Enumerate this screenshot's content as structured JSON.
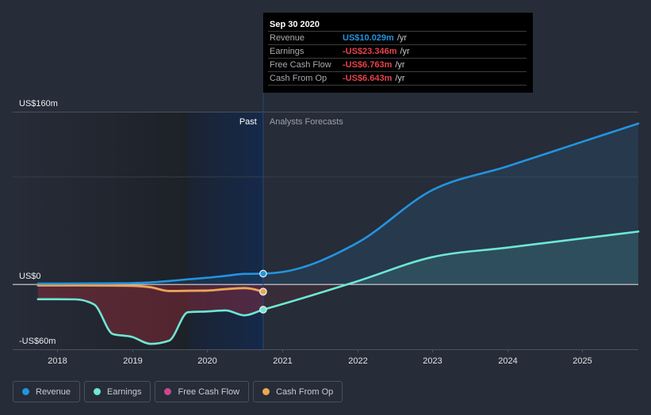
{
  "chart_data": {
    "type": "line",
    "title": "",
    "xlabel": "",
    "ylabel": "",
    "xlim": [
      "2017-05-30",
      "2025-09-30"
    ],
    "ylim": [
      -60,
      160
    ],
    "grid": true,
    "gridlines": [
      160,
      100
    ],
    "legend_position": "bottom-left",
    "y_axis_labels": [
      {
        "value": 160,
        "label": "US$160m"
      },
      {
        "value": 0,
        "label": "US$0"
      },
      {
        "value": -60,
        "label": "-US$60m"
      }
    ],
    "x_ticks": [
      {
        "date": "2018-01-01",
        "label": "2018"
      },
      {
        "date": "2019-01-01",
        "label": "2019"
      },
      {
        "date": "2020-01-01",
        "label": "2020"
      },
      {
        "date": "2021-01-01",
        "label": "2021"
      },
      {
        "date": "2022-01-01",
        "label": "2022"
      },
      {
        "date": "2023-01-01",
        "label": "2023"
      },
      {
        "date": "2024-01-01",
        "label": "2024"
      },
      {
        "date": "2025-01-01",
        "label": "2025"
      }
    ],
    "regions": {
      "past": {
        "label": "Past",
        "start": "2019-09-30",
        "end": "2020-09-30"
      },
      "forecast": {
        "label": "Analysts Forecasts",
        "start": "2020-09-30"
      }
    },
    "highlight_date": "2020-09-30",
    "series": [
      {
        "name": "Revenue",
        "color": "#2394df",
        "unit": "US$m",
        "points": [
          [
            "2017-09-30",
            0.8
          ],
          [
            "2017-12-31",
            0.8
          ],
          [
            "2018-03-31",
            0.9
          ],
          [
            "2018-06-30",
            1.0
          ],
          [
            "2018-09-30",
            1.1
          ],
          [
            "2018-12-31",
            1.3
          ],
          [
            "2019-03-31",
            1.9
          ],
          [
            "2019-06-30",
            3.2
          ],
          [
            "2019-09-30",
            4.8
          ],
          [
            "2019-12-31",
            6.2
          ],
          [
            "2020-03-31",
            8.0
          ],
          [
            "2020-06-30",
            9.8
          ],
          [
            "2020-09-30",
            10.029
          ]
        ],
        "forecast_points": [
          [
            "2020-12-31",
            11.5
          ],
          [
            "2021-12-31",
            38.4
          ],
          [
            "2022-12-31",
            87.3
          ],
          [
            "2023-12-31",
            109.3
          ],
          [
            "2024-12-31",
            132.1
          ],
          [
            "2025-09-30",
            149.0
          ]
        ]
      },
      {
        "name": "Earnings",
        "color": "#6ee7d3",
        "unit": "US$m",
        "points": [
          [
            "2017-09-30",
            -13.7
          ],
          [
            "2017-12-31",
            -13.7
          ],
          [
            "2018-03-31",
            -13.8
          ],
          [
            "2018-06-30",
            -18.5
          ],
          [
            "2018-09-30",
            -46.0
          ],
          [
            "2018-12-31",
            -48.5
          ],
          [
            "2019-03-31",
            -55.0
          ],
          [
            "2019-06-30",
            -52.0
          ],
          [
            "2019-09-30",
            -25.7
          ],
          [
            "2019-12-31",
            -25.0
          ],
          [
            "2020-03-31",
            -24.0
          ],
          [
            "2020-06-30",
            -28.6
          ],
          [
            "2020-09-30",
            -23.346
          ]
        ],
        "forecast_points": [
          [
            "2020-12-31",
            -18.3
          ],
          [
            "2021-12-31",
            2.9
          ],
          [
            "2022-12-31",
            25.3
          ],
          [
            "2023-12-31",
            34.1
          ],
          [
            "2024-12-31",
            42.6
          ],
          [
            "2025-09-30",
            49.0
          ]
        ]
      },
      {
        "name": "Free Cash Flow",
        "color": "#c9488b",
        "unit": "US$m",
        "points": [
          [
            "2017-09-30",
            -0.9
          ],
          [
            "2017-12-31",
            -0.9
          ],
          [
            "2018-03-31",
            -0.9
          ],
          [
            "2018-06-30",
            -1.0
          ],
          [
            "2018-09-30",
            -1.1
          ],
          [
            "2018-12-31",
            -1.3
          ],
          [
            "2019-03-31",
            -2.6
          ],
          [
            "2019-06-30",
            -6.1
          ],
          [
            "2019-09-30",
            -5.9
          ],
          [
            "2019-12-31",
            -5.7
          ],
          [
            "2020-03-31",
            -4.4
          ],
          [
            "2020-06-30",
            -3.4
          ],
          [
            "2020-09-30",
            -6.763
          ]
        ],
        "forecast_points": []
      },
      {
        "name": "Cash From Op",
        "color": "#e8a94f",
        "unit": "US$m",
        "points": [
          [
            "2017-09-30",
            -0.8
          ],
          [
            "2017-12-31",
            -0.8
          ],
          [
            "2018-03-31",
            -0.8
          ],
          [
            "2018-06-30",
            -0.9
          ],
          [
            "2018-09-30",
            -1.0
          ],
          [
            "2018-12-31",
            -1.2
          ],
          [
            "2019-03-31",
            -2.5
          ],
          [
            "2019-06-30",
            -6.0
          ],
          [
            "2019-09-30",
            -5.8
          ],
          [
            "2019-12-31",
            -5.6
          ],
          [
            "2020-03-31",
            -4.3
          ],
          [
            "2020-06-30",
            -3.3
          ],
          [
            "2020-09-30",
            -6.643
          ]
        ],
        "forecast_points": []
      }
    ]
  },
  "tooltip": {
    "date": "Sep 30 2020",
    "rows": [
      {
        "label": "Revenue",
        "value": "US$10.029m",
        "unit": "/yr",
        "color": "#2394df"
      },
      {
        "label": "Earnings",
        "value": "-US$23.346m",
        "unit": "/yr",
        "color": "#e8424a"
      },
      {
        "label": "Free Cash Flow",
        "value": "-US$6.763m",
        "unit": "/yr",
        "color": "#e8424a"
      },
      {
        "label": "Cash From Op",
        "value": "-US$6.643m",
        "unit": "/yr",
        "color": "#e8424a"
      }
    ]
  },
  "legend": {
    "items": [
      {
        "label": "Revenue",
        "color": "#2394df"
      },
      {
        "label": "Earnings",
        "color": "#6ee7d3"
      },
      {
        "label": "Free Cash Flow",
        "color": "#c9488b"
      },
      {
        "label": "Cash From Op",
        "color": "#e8a94f"
      }
    ]
  }
}
